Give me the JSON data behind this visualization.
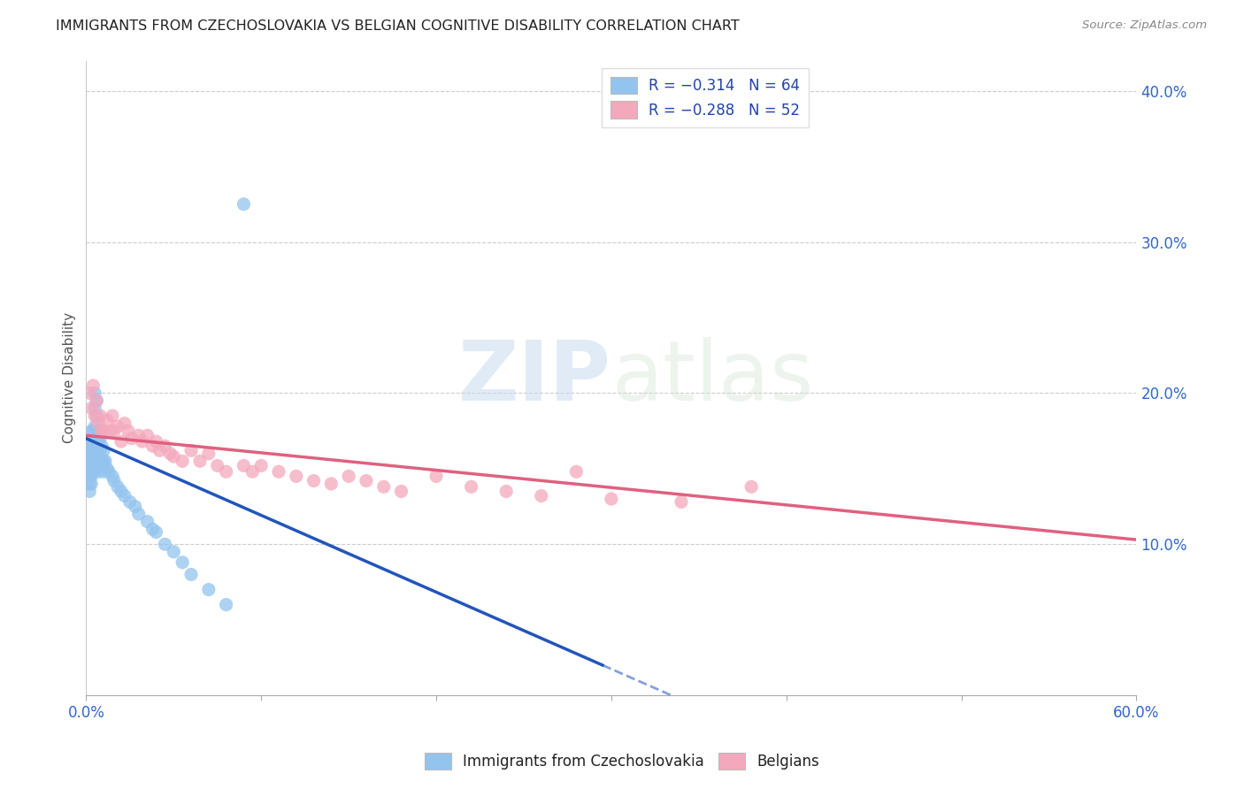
{
  "title": "IMMIGRANTS FROM CZECHOSLOVAKIA VS BELGIAN COGNITIVE DISABILITY CORRELATION CHART",
  "source": "Source: ZipAtlas.com",
  "ylabel": "Cognitive Disability",
  "right_yticks": [
    0.1,
    0.2,
    0.3,
    0.4
  ],
  "right_yticklabels": [
    "10.0%",
    "20.0%",
    "30.0%",
    "40.0%"
  ],
  "xlim": [
    0.0,
    0.6
  ],
  "ylim": [
    0.0,
    0.42
  ],
  "legend_entry1": "R = −0.314   N = 64",
  "legend_entry2": "R = −0.288   N = 52",
  "legend_label1": "Immigrants from Czechoslovakia",
  "legend_label2": "Belgians",
  "blue_color": "#93C4EE",
  "pink_color": "#F4A8BC",
  "blue_line_color": "#2255BB",
  "pink_line_color": "#E06080",
  "watermark_zip": "ZIP",
  "watermark_atlas": "atlas",
  "blue_scatter_x": [
    0.001,
    0.001,
    0.001,
    0.002,
    0.002,
    0.002,
    0.002,
    0.002,
    0.002,
    0.003,
    0.003,
    0.003,
    0.003,
    0.003,
    0.003,
    0.003,
    0.004,
    0.004,
    0.004,
    0.004,
    0.004,
    0.005,
    0.005,
    0.005,
    0.005,
    0.005,
    0.005,
    0.006,
    0.006,
    0.006,
    0.006,
    0.007,
    0.007,
    0.007,
    0.007,
    0.008,
    0.008,
    0.008,
    0.009,
    0.009,
    0.01,
    0.01,
    0.01,
    0.011,
    0.012,
    0.013,
    0.015,
    0.016,
    0.018,
    0.02,
    0.022,
    0.025,
    0.028,
    0.03,
    0.035,
    0.038,
    0.04,
    0.045,
    0.05,
    0.055,
    0.06,
    0.07,
    0.08,
    0.09
  ],
  "blue_scatter_y": [
    0.165,
    0.158,
    0.148,
    0.16,
    0.155,
    0.15,
    0.145,
    0.14,
    0.135,
    0.175,
    0.168,
    0.162,
    0.155,
    0.15,
    0.145,
    0.14,
    0.175,
    0.168,
    0.162,
    0.155,
    0.148,
    0.2,
    0.19,
    0.178,
    0.165,
    0.158,
    0.15,
    0.195,
    0.185,
    0.17,
    0.158,
    0.175,
    0.168,
    0.158,
    0.148,
    0.17,
    0.162,
    0.152,
    0.165,
    0.155,
    0.162,
    0.155,
    0.148,
    0.155,
    0.15,
    0.148,
    0.145,
    0.142,
    0.138,
    0.135,
    0.132,
    0.128,
    0.125,
    0.12,
    0.115,
    0.11,
    0.108,
    0.1,
    0.095,
    0.088,
    0.08,
    0.07,
    0.06,
    0.325
  ],
  "pink_scatter_x": [
    0.002,
    0.003,
    0.004,
    0.005,
    0.006,
    0.007,
    0.008,
    0.009,
    0.01,
    0.012,
    0.014,
    0.015,
    0.016,
    0.018,
    0.02,
    0.022,
    0.024,
    0.026,
    0.03,
    0.032,
    0.035,
    0.038,
    0.04,
    0.042,
    0.045,
    0.048,
    0.05,
    0.055,
    0.06,
    0.065,
    0.07,
    0.075,
    0.08,
    0.09,
    0.095,
    0.1,
    0.11,
    0.12,
    0.13,
    0.14,
    0.15,
    0.16,
    0.17,
    0.18,
    0.2,
    0.22,
    0.24,
    0.26,
    0.28,
    0.3,
    0.34,
    0.38
  ],
  "pink_scatter_y": [
    0.2,
    0.19,
    0.205,
    0.185,
    0.195,
    0.18,
    0.185,
    0.175,
    0.175,
    0.182,
    0.175,
    0.185,
    0.175,
    0.178,
    0.168,
    0.18,
    0.175,
    0.17,
    0.172,
    0.168,
    0.172,
    0.165,
    0.168,
    0.162,
    0.165,
    0.16,
    0.158,
    0.155,
    0.162,
    0.155,
    0.16,
    0.152,
    0.148,
    0.152,
    0.148,
    0.152,
    0.148,
    0.145,
    0.142,
    0.14,
    0.145,
    0.142,
    0.138,
    0.135,
    0.145,
    0.138,
    0.135,
    0.132,
    0.148,
    0.13,
    0.128,
    0.138
  ],
  "blue_line_x0": 0.0,
  "blue_line_x1": 0.295,
  "blue_line_x_dash_end": 0.5,
  "blue_line_y0": 0.17,
  "blue_line_y1": 0.02,
  "pink_line_x0": 0.0,
  "pink_line_x1": 0.6,
  "pink_line_y0": 0.172,
  "pink_line_y1": 0.103
}
